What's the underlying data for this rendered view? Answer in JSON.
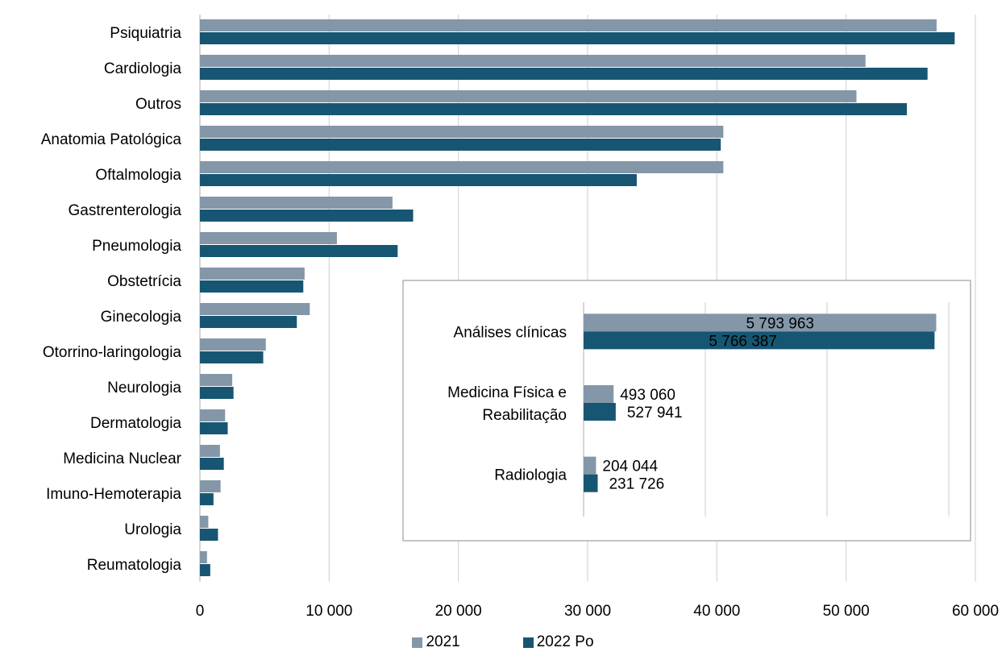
{
  "chart_data": [
    {
      "type": "bar",
      "orientation": "horizontal",
      "categories": [
        "Psiquiatria",
        "Cardiologia",
        "Outros",
        "Anatomia Patológica",
        "Oftalmologia",
        "Gastrenterologia",
        "Pneumologia",
        "Obstetrícia",
        "Ginecologia",
        "Otorrino-laringologia",
        "Neurologia",
        "Dermatologia",
        "Medicina Nuclear",
        "Imuno-Hemoterapia",
        "Urologia",
        "Reumatologia"
      ],
      "series": [
        {
          "name": "2021",
          "color": "#8497A9",
          "values": [
            57000,
            51500,
            50800,
            40500,
            40500,
            14900,
            10600,
            8100,
            8500,
            5100,
            2500,
            1950,
            1550,
            1600,
            650,
            550
          ]
        },
        {
          "name": "2022 Po",
          "color": "#175672",
          "values": [
            58400,
            56300,
            54700,
            40300,
            33800,
            16500,
            15300,
            8000,
            7500,
            4900,
            2600,
            2150,
            1850,
            1050,
            1400,
            800
          ]
        }
      ],
      "xlim": [
        0,
        60000
      ],
      "tick_labels": [
        "0",
        "10 000",
        "20 000",
        "30 000",
        "40 000",
        "50 000",
        "60 000"
      ],
      "grid": true,
      "legend": "bottom"
    },
    {
      "type": "bar",
      "orientation": "horizontal",
      "inset": true,
      "categories": [
        "Análises clínicas",
        "Medicina Física e Reabilitação",
        "Radiologia"
      ],
      "category_lines": [
        [
          "Análises clínicas"
        ],
        [
          "Medicina Física e",
          "Reabilitação"
        ],
        [
          "Radiologia"
        ]
      ],
      "series": [
        {
          "name": "2021",
          "color": "#8497A9",
          "values": [
            5793963,
            493060,
            204044
          ],
          "labels": [
            "5 793 963",
            "493 060",
            "204 044"
          ]
        },
        {
          "name": "2022 Po",
          "color": "#175672",
          "values": [
            5766387,
            527941,
            231726
          ],
          "labels": [
            "5 766 387",
            "527 941",
            "231 726"
          ]
        }
      ],
      "xlim": [
        0,
        6000000
      ],
      "grid": true
    }
  ],
  "legend": {
    "items": [
      {
        "label": "2021",
        "color": "#8497A9"
      },
      {
        "label": "2022 Po",
        "color": "#175672"
      }
    ]
  }
}
